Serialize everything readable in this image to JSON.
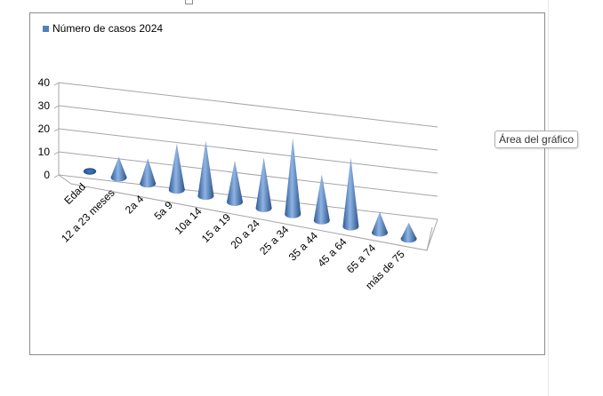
{
  "tooltip": {
    "text": "Área del gráfico"
  },
  "chart_data": {
    "type": "bar",
    "subtype": "3d-cone",
    "legend": {
      "label": "Número de casos 2024",
      "position": "top-left"
    },
    "categories": [
      "Edad",
      "12 a 23 meses",
      "2a 4",
      "5a 9",
      "10a 14",
      "15 a 19",
      "20 a 24",
      "25 a 34",
      "35 a 44",
      "45 a 64",
      "65 a 74",
      "más de 75"
    ],
    "series": [
      {
        "name": "Número de casos 2024",
        "color": "#4f81bd",
        "values": [
          0,
          9,
          11,
          20,
          24,
          18,
          22,
          33,
          20,
          30,
          9,
          7
        ]
      }
    ],
    "yticks": [
      0,
      10,
      20,
      30,
      40
    ],
    "ylim": [
      0,
      40
    ],
    "grid": true
  }
}
